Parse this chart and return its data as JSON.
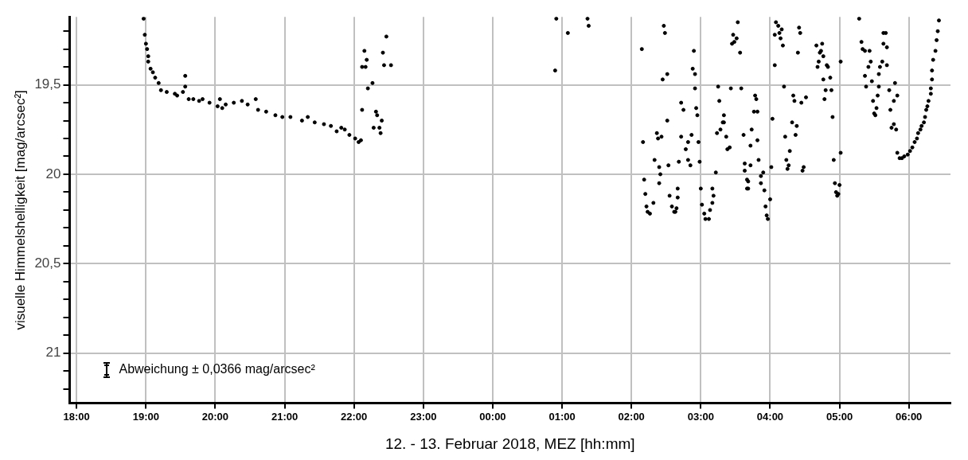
{
  "chart_data": {
    "type": "scatter",
    "xlabel": "12. - 13. Februar 2018, MEZ [hh:mm]",
    "ylabel": "visuelle Himmelshelligkeit [mag/arcsec²]",
    "annotations": [
      "Abweichung ± 0,0366 mag/arcsec²"
    ],
    "xlim": [
      "2018-02-12T17:54",
      "2018-02-13T06:36"
    ],
    "ylim": [
      21.28,
      19.12
    ],
    "xticks": [
      {
        "value": "2018-02-12T18:00",
        "label": "18:00"
      },
      {
        "value": "2018-02-12T19:00",
        "label": "19:00"
      },
      {
        "value": "2018-02-12T20:00",
        "label": "20:00"
      },
      {
        "value": "2018-02-12T21:00",
        "label": "21:00"
      },
      {
        "value": "2018-02-12T22:00",
        "label": "22:00"
      },
      {
        "value": "2018-02-12T23:00",
        "label": "23:00"
      },
      {
        "value": "2018-02-13T00:00",
        "label": "00:00"
      },
      {
        "value": "2018-02-13T01:00",
        "label": "01:00"
      },
      {
        "value": "2018-02-13T02:00",
        "label": "02:00"
      },
      {
        "value": "2018-02-13T03:00",
        "label": "03:00"
      },
      {
        "value": "2018-02-13T04:00",
        "label": "04:00"
      },
      {
        "value": "2018-02-13T05:00",
        "label": "05:00"
      },
      {
        "value": "2018-02-13T06:00",
        "label": "06:00"
      }
    ],
    "yticks": [
      {
        "value": 19.2,
        "label": null
      },
      {
        "value": 19.3,
        "label": null
      },
      {
        "value": 19.4,
        "label": null
      },
      {
        "value": 19.5,
        "label": "19,5"
      },
      {
        "value": 19.6,
        "label": null
      },
      {
        "value": 19.7,
        "label": null
      },
      {
        "value": 19.8,
        "label": null
      },
      {
        "value": 19.9,
        "label": null
      },
      {
        "value": 20,
        "label": "20"
      },
      {
        "value": 20.1,
        "label": null
      },
      {
        "value": 20.2,
        "label": null
      },
      {
        "value": 20.3,
        "label": null
      },
      {
        "value": 20.4,
        "label": null
      },
      {
        "value": 20.5,
        "label": "20,5"
      },
      {
        "value": 20.6,
        "label": null
      },
      {
        "value": 20.7,
        "label": null
      },
      {
        "value": 20.8,
        "label": null
      },
      {
        "value": 20.9,
        "label": null
      },
      {
        "value": 21,
        "label": "21"
      },
      {
        "value": 21.1,
        "label": null
      },
      {
        "value": 21.2,
        "label": null
      }
    ],
    "grid": true,
    "marker": "circle",
    "series": [
      {
        "color": "#000000",
        "x": [
          "2018-02-12T18:58",
          "2018-02-12T18:59",
          "2018-02-12T19:00",
          "2018-02-12T19:01",
          "2018-02-12T19:02",
          "2018-02-12T19:02",
          "2018-02-12T19:04",
          "2018-02-12T19:06",
          "2018-02-12T19:08",
          "2018-02-12T19:11",
          "2018-02-12T19:13",
          "2018-02-12T19:18",
          "2018-02-12T19:25",
          "2018-02-12T19:27",
          "2018-02-12T19:32",
          "2018-02-12T19:34",
          "2018-02-12T19:34",
          "2018-02-12T19:37",
          "2018-02-12T19:41",
          "2018-02-12T19:46",
          "2018-02-12T19:49",
          "2018-02-12T19:55",
          "2018-02-12T20:02",
          "2018-02-12T20:04",
          "2018-02-12T20:06",
          "2018-02-12T20:09",
          "2018-02-12T20:16",
          "2018-02-12T20:23",
          "2018-02-12T20:28",
          "2018-02-12T20:35",
          "2018-02-12T20:37",
          "2018-02-12T20:44",
          "2018-02-12T20:52",
          "2018-02-12T20:58",
          "2018-02-12T21:05",
          "2018-02-12T21:15",
          "2018-02-12T21:20",
          "2018-02-12T21:26",
          "2018-02-12T21:34",
          "2018-02-12T21:40",
          "2018-02-12T21:45",
          "2018-02-12T21:49",
          "2018-02-12T21:52",
          "2018-02-12T21:56",
          "2018-02-12T22:01",
          "2018-02-12T22:04",
          "2018-02-12T22:06",
          "2018-02-12T22:07",
          "2018-02-12T22:07",
          "2018-02-12T22:10",
          "2018-02-12T22:09",
          "2018-02-12T22:11",
          "2018-02-12T22:12",
          "2018-02-12T22:16",
          "2018-02-12T22:17",
          "2018-02-12T22:19",
          "2018-02-12T22:20",
          "2018-02-12T22:22",
          "2018-02-12T22:23",
          "2018-02-12T22:24",
          "2018-02-12T22:25",
          "2018-02-12T22:26",
          "2018-02-12T22:28",
          "2018-02-12T22:32",
          "2018-02-13T00:55",
          "2018-02-13T00:54",
          "2018-02-13T01:05",
          "2018-02-13T01:22",
          "2018-02-13T01:23",
          "2018-02-13T02:09",
          "2018-02-13T02:10",
          "2018-02-13T02:11",
          "2018-02-13T02:12",
          "2018-02-13T02:13",
          "2018-02-13T02:14",
          "2018-02-13T02:16",
          "2018-02-13T02:19",
          "2018-02-13T02:20",
          "2018-02-13T02:22",
          "2018-02-13T02:23",
          "2018-02-13T02:24",
          "2018-02-13T02:25",
          "2018-02-13T02:24",
          "2018-02-13T02:26",
          "2018-02-13T02:27",
          "2018-02-13T02:28",
          "2018-02-13T02:29",
          "2018-02-13T02:31",
          "2018-02-13T02:31",
          "2018-02-13T02:32",
          "2018-02-13T02:33",
          "2018-02-13T02:35",
          "2018-02-13T02:37",
          "2018-02-13T02:38",
          "2018-02-13T02:39",
          "2018-02-13T02:40",
          "2018-02-13T02:40",
          "2018-02-13T02:41",
          "2018-02-13T02:43",
          "2018-02-13T02:43",
          "2018-02-13T02:45",
          "2018-02-13T02:47",
          "2018-02-13T02:49",
          "2018-02-13T02:49",
          "2018-02-13T02:51",
          "2018-02-13T02:52",
          "2018-02-13T02:53",
          "2018-02-13T02:54",
          "2018-02-13T02:55",
          "2018-02-13T02:55",
          "2018-02-13T02:56",
          "2018-02-13T02:57",
          "2018-02-13T02:58",
          "2018-02-13T02:59",
          "2018-02-13T03:00",
          "2018-02-13T03:01",
          "2018-02-13T03:03",
          "2018-02-13T03:04",
          "2018-02-13T03:07",
          "2018-02-13T03:08",
          "2018-02-13T03:10",
          "2018-02-13T03:11",
          "2018-02-13T03:10",
          "2018-02-13T03:13",
          "2018-02-13T03:14",
          "2018-02-13T03:15",
          "2018-02-13T03:16",
          "2018-02-13T03:17",
          "2018-02-13T03:19",
          "2018-02-13T03:20",
          "2018-02-13T03:20",
          "2018-02-13T03:22",
          "2018-02-13T03:23",
          "2018-02-13T03:25",
          "2018-02-13T03:26",
          "2018-02-13T03:27",
          "2018-02-13T03:28",
          "2018-02-13T03:29",
          "2018-02-13T03:31",
          "2018-02-13T03:32",
          "2018-02-13T03:34",
          "2018-02-13T03:35",
          "2018-02-13T03:37",
          "2018-02-13T03:38",
          "2018-02-13T03:38",
          "2018-02-13T03:40",
          "2018-02-13T03:40",
          "2018-02-13T03:41",
          "2018-02-13T03:41",
          "2018-02-13T03:43",
          "2018-02-13T03:43",
          "2018-02-13T03:44",
          "2018-02-13T03:46",
          "2018-02-13T03:47",
          "2018-02-13T03:48",
          "2018-02-13T03:49",
          "2018-02-13T03:49",
          "2018-02-13T03:50",
          "2018-02-13T03:52",
          "2018-02-13T03:52",
          "2018-02-13T03:54",
          "2018-02-13T03:55",
          "2018-02-13T03:56",
          "2018-02-13T03:57",
          "2018-02-13T03:58",
          "2018-02-13T04:00",
          "2018-02-13T04:01",
          "2018-02-13T04:02",
          "2018-02-13T04:04",
          "2018-02-13T04:04",
          "2018-02-13T04:05",
          "2018-02-13T04:07",
          "2018-02-13T04:08",
          "2018-02-13T04:09",
          "2018-02-13T04:10",
          "2018-02-13T04:11",
          "2018-02-13T04:12",
          "2018-02-13T04:13",
          "2018-02-13T04:14",
          "2018-02-13T04:15",
          "2018-02-13T04:16",
          "2018-02-13T04:17",
          "2018-02-13T04:19",
          "2018-02-13T04:20",
          "2018-02-13T04:21",
          "2018-02-13T04:22",
          "2018-02-13T04:23",
          "2018-02-13T04:24",
          "2018-02-13T04:25",
          "2018-02-13T04:26",
          "2018-02-13T04:27",
          "2018-02-13T04:28",
          "2018-02-13T04:29",
          "2018-02-13T04:31",
          "2018-02-13T04:40",
          "2018-02-13T04:41",
          "2018-02-13T04:42",
          "2018-02-13T04:43",
          "2018-02-13T04:44",
          "2018-02-13T04:45",
          "2018-02-13T04:46",
          "2018-02-13T04:46",
          "2018-02-13T04:47",
          "2018-02-13T04:48",
          "2018-02-13T04:49",
          "2018-02-13T04:50",
          "2018-02-13T04:52",
          "2018-02-13T04:53",
          "2018-02-13T04:54",
          "2018-02-13T04:55",
          "2018-02-13T04:56",
          "2018-02-13T04:57",
          "2018-02-13T04:58",
          "2018-02-13T04:59",
          "2018-02-13T05:00",
          "2018-02-13T05:01",
          "2018-02-13T05:01",
          "2018-02-13T05:17",
          "2018-02-13T05:19",
          "2018-02-13T05:20",
          "2018-02-13T05:22",
          "2018-02-13T05:22",
          "2018-02-13T05:23",
          "2018-02-13T05:25",
          "2018-02-13T05:26",
          "2018-02-13T05:27",
          "2018-02-13T05:28",
          "2018-02-13T05:29",
          "2018-02-13T05:30",
          "2018-02-13T05:31",
          "2018-02-13T05:32",
          "2018-02-13T05:33",
          "2018-02-13T05:34",
          "2018-02-13T05:34",
          "2018-02-13T05:35",
          "2018-02-13T05:37",
          "2018-02-13T05:38",
          "2018-02-13T05:38",
          "2018-02-13T05:40",
          "2018-02-13T05:41",
          "2018-02-13T05:41",
          "2018-02-13T05:43",
          "2018-02-13T05:44",
          "2018-02-13T05:45",
          "2018-02-13T05:47",
          "2018-02-13T05:47",
          "2018-02-13T05:48",
          "2018-02-13T05:49",
          "2018-02-13T05:50",
          "2018-02-13T05:50",
          "2018-02-13T05:52",
          "2018-02-13T05:54",
          "2018-02-13T05:56",
          "2018-02-13T05:59",
          "2018-02-13T06:01",
          "2018-02-13T06:03",
          "2018-02-13T06:05",
          "2018-02-13T06:07",
          "2018-02-13T06:08",
          "2018-02-13T06:10",
          "2018-02-13T06:11",
          "2018-02-13T06:13",
          "2018-02-13T06:14",
          "2018-02-13T06:15",
          "2018-02-13T06:16",
          "2018-02-13T06:17",
          "2018-02-13T06:19",
          "2018-02-13T06:19",
          "2018-02-13T06:20",
          "2018-02-13T06:20",
          "2018-02-13T06:21",
          "2018-02-13T06:23",
          "2018-02-13T06:24",
          "2018-02-13T06:25",
          "2018-02-13T06:26"
        ],
        "values": [
          19.13,
          19.22,
          19.27,
          19.3,
          19.34,
          19.37,
          19.41,
          19.43,
          19.46,
          19.49,
          19.53,
          19.54,
          19.55,
          19.56,
          19.54,
          19.45,
          19.51,
          19.58,
          19.58,
          19.59,
          19.58,
          19.6,
          19.62,
          19.58,
          19.63,
          19.61,
          19.6,
          19.59,
          19.61,
          19.58,
          19.64,
          19.65,
          19.67,
          19.68,
          19.68,
          19.7,
          19.68,
          19.71,
          19.72,
          19.73,
          19.76,
          19.74,
          19.75,
          19.78,
          19.8,
          19.82,
          19.81,
          19.64,
          19.4,
          19.4,
          19.31,
          19.36,
          19.52,
          19.49,
          19.74,
          19.65,
          19.67,
          19.74,
          19.77,
          19.7,
          19.32,
          19.39,
          19.23,
          19.39,
          19.13,
          19.42,
          19.21,
          19.13,
          19.17,
          19.3,
          19.82,
          20.03,
          20.11,
          20.18,
          20.21,
          20.22,
          20.16,
          19.92,
          19.77,
          19.8,
          19.96,
          20.0,
          20.05,
          19.79,
          19.47,
          19.17,
          19.21,
          19.44,
          19.7,
          19.95,
          20.12,
          20.18,
          20.21,
          20.21,
          20.19,
          20.13,
          20.08,
          19.93,
          19.79,
          19.6,
          19.64,
          19.86,
          19.82,
          19.92,
          19.95,
          19.78,
          19.41,
          19.31,
          19.44,
          19.52,
          19.63,
          19.67,
          19.82,
          19.93,
          20.08,
          20.17,
          20.22,
          20.25,
          20.25,
          20.2,
          20.16,
          20.12,
          20.08,
          19.99,
          19.77,
          19.51,
          19.59,
          19.75,
          19.71,
          19.67,
          19.71,
          19.79,
          19.86,
          19.85,
          19.52,
          19.27,
          19.22,
          19.26,
          19.24,
          19.15,
          19.32,
          19.52,
          19.78,
          19.94,
          19.98,
          20.03,
          20.08,
          20.08,
          20.04,
          19.95,
          19.84,
          19.75,
          19.65,
          19.56,
          19.58,
          19.65,
          19.81,
          19.92,
          20.05,
          20.01,
          19.99,
          20.09,
          20.18,
          20.23,
          20.25,
          20.14,
          19.96,
          19.69,
          19.39,
          19.22,
          19.15,
          19.17,
          19.21,
          19.24,
          19.19,
          19.28,
          19.51,
          19.79,
          19.92,
          19.97,
          19.95,
          19.87,
          19.71,
          19.56,
          19.59,
          19.78,
          19.73,
          19.32,
          19.18,
          19.21,
          19.6,
          19.98,
          19.96,
          19.57,
          19.28,
          19.4,
          19.37,
          19.32,
          19.31,
          19.27,
          19.34,
          19.47,
          19.58,
          19.53,
          19.39,
          19.4,
          19.46,
          19.53,
          19.68,
          19.92,
          20.05,
          20.1,
          20.12,
          20.11,
          20.06,
          19.88,
          19.37,
          19.13,
          19.26,
          19.3,
          19.31,
          19.45,
          19.51,
          19.4,
          19.31,
          19.37,
          19.48,
          19.59,
          19.66,
          19.67,
          19.63,
          19.56,
          19.51,
          19.44,
          19.4,
          19.37,
          19.27,
          19.21,
          19.21,
          19.29,
          19.39,
          19.53,
          19.64,
          19.74,
          19.72,
          19.59,
          19.49,
          19.75,
          19.56,
          19.88,
          19.91,
          19.91,
          19.9,
          19.89,
          19.87,
          19.85,
          19.82,
          19.8,
          19.77,
          19.75,
          19.73,
          19.71,
          19.68,
          19.64,
          19.62,
          19.59,
          19.55,
          19.52,
          19.47,
          19.42,
          19.36,
          19.31,
          19.25,
          19.2,
          19.14
        ]
      }
    ]
  }
}
